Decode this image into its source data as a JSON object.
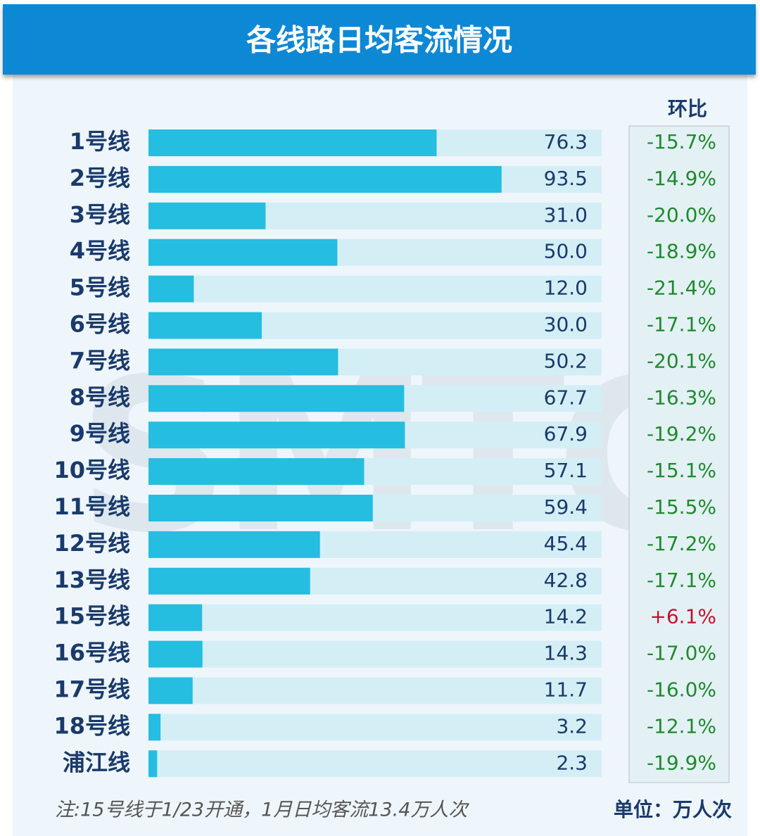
{
  "chart_data": {
    "type": "bar",
    "title": "各线路日均客流情况",
    "categories": [
      "1号线",
      "2号线",
      "3号线",
      "4号线",
      "5号线",
      "6号线",
      "7号线",
      "8号线",
      "9号线",
      "10号线",
      "11号线",
      "12号线",
      "13号线",
      "15号线",
      "16号线",
      "17号线",
      "18号线",
      "浦江线"
    ],
    "values": [
      76.3,
      93.5,
      31.0,
      50.0,
      12.0,
      30.0,
      50.2,
      67.7,
      67.9,
      57.1,
      59.4,
      45.4,
      42.8,
      14.2,
      14.3,
      11.7,
      3.2,
      2.3
    ],
    "value_labels": [
      "76.3",
      "93.5",
      "31.0",
      "50.0",
      "12.0",
      "30.0",
      "50.2",
      "67.7",
      "67.9",
      "57.1",
      "59.4",
      "45.4",
      "42.8",
      "14.2",
      "14.3",
      "11.7",
      "3.2",
      "2.3"
    ],
    "xlim": [
      0,
      120
    ],
    "color": "#25bde0",
    "track_color": "#d4eef6",
    "change": {
      "name": "环比",
      "values": [
        -15.7,
        -14.9,
        -20.0,
        -18.9,
        -21.4,
        -17.1,
        -20.1,
        -16.3,
        -19.2,
        -15.1,
        -15.5,
        -17.2,
        -17.1,
        6.1,
        -17.0,
        -16.0,
        -12.1,
        -19.9
      ],
      "value_labels": [
        "-15.7%",
        "-14.9%",
        "-20.0%",
        "-18.9%",
        "-21.4%",
        "-17.1%",
        "-20.1%",
        "-16.3%",
        "-19.2%",
        "-15.1%",
        "-15.5%",
        "-17.2%",
        "-17.1%",
        "+6.1%",
        "-17.0%",
        "-16.0%",
        "-12.1%",
        "-19.9%"
      ],
      "negative_color": "#1e8a2e",
      "positive_color": "#c8102e"
    },
    "watermark": "SMTC",
    "note": "注:15号线于1/23开通，1月日均客流13.4万人次",
    "unit": "单位：万人次"
  }
}
